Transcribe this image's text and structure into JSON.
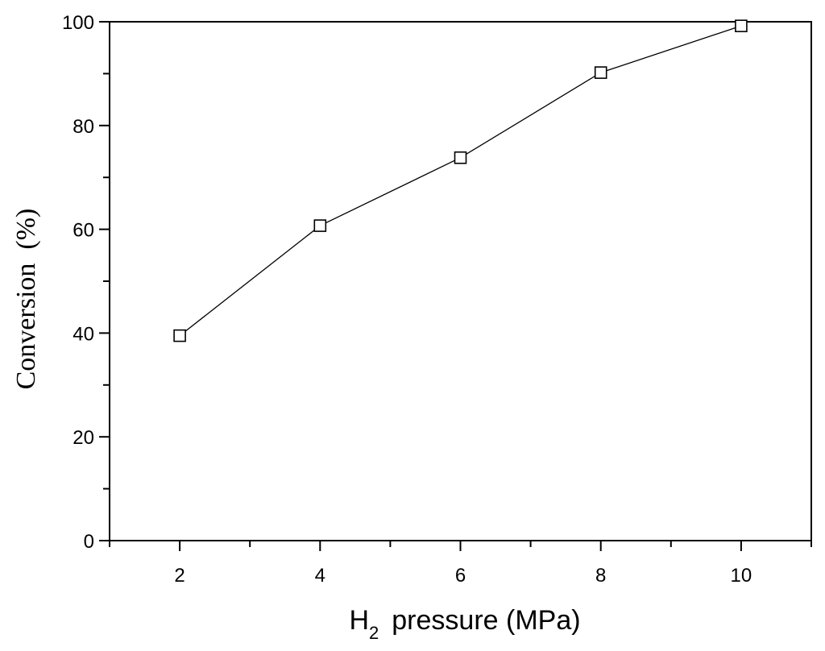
{
  "chart_data": {
    "type": "line",
    "x": [
      2,
      4,
      6,
      8,
      10
    ],
    "series": [
      {
        "values": [
          39.5,
          60.7,
          73.8,
          90.2,
          99.2
        ],
        "marker": "open-square",
        "color": "#000000"
      }
    ],
    "xlabel": {
      "main": "H",
      "sub": "2",
      "rest": "pressure (MPa)"
    },
    "ylabel": "Conversion  (%)",
    "xlim": [
      1,
      11
    ],
    "ylim": [
      0,
      100
    ],
    "xticks": [
      2,
      4,
      6,
      8,
      10
    ],
    "xtick_labels": [
      "2",
      "4",
      "6",
      "8",
      "10"
    ],
    "yticks": [
      0,
      20,
      40,
      60,
      80,
      100
    ],
    "ytick_labels": [
      "0",
      "20",
      "40",
      "60",
      "80",
      "100"
    ],
    "grid": false,
    "legend": "none"
  }
}
